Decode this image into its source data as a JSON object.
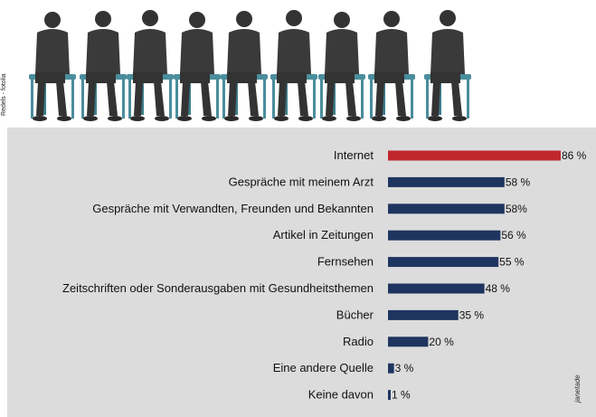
{
  "credit": "Redels - fotolia",
  "source": "janetade",
  "chart_data": {
    "type": "bar",
    "orientation": "horizontal",
    "categories": [
      "Internet",
      "Gespräche mit meinem Arzt",
      "Gespräche mit Verwandten, Freunden und Bekannten",
      "Artikel in Zeitungen",
      "Fernsehen",
      "Zeitschriften oder Sonderausgaben mit Gesundheitsthemen",
      "Bücher",
      "Radio",
      "Eine andere Quelle",
      "Keine davon"
    ],
    "values": [
      86,
      58,
      58,
      56,
      55,
      48,
      35,
      20,
      3,
      1
    ],
    "value_labels": [
      "86 %",
      "58 %",
      "58%",
      "56 %",
      "55 %",
      "48 %",
      "35 %",
      "20 %",
      "3 %",
      "1 %"
    ],
    "colors": [
      "#c0272d",
      "#1e3560",
      "#1e3560",
      "#1e3560",
      "#1e3560",
      "#1e3560",
      "#1e3560",
      "#1e3560",
      "#1e3560",
      "#1e3560"
    ],
    "xlim": [
      0,
      100
    ],
    "grid": false,
    "legend": false
  }
}
